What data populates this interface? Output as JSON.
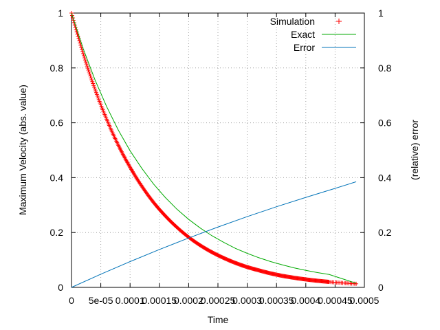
{
  "chart_data": {
    "type": "line",
    "title": "",
    "xlabel": "Time",
    "ylabel": "Maximum Velocity (abs. value)",
    "y2label": "(relative) error",
    "xlim": [
      0,
      0.0005
    ],
    "ylim": [
      0,
      1
    ],
    "y2lim": [
      0,
      1
    ],
    "grid": true,
    "legend_position": "top-right",
    "xticks": [
      "0",
      "5e-05",
      "0.0001",
      "0.00015",
      "0.0002",
      "0.00025",
      "0.0003",
      "0.00035",
      "0.0004",
      "0.00045",
      "0.0005"
    ],
    "yticks": [
      "0",
      "0.2",
      "0.4",
      "0.6",
      "0.8",
      "1"
    ],
    "y2ticks": [
      "0",
      "0.2",
      "0.4",
      "0.6",
      "0.8",
      "1"
    ],
    "series": [
      {
        "name": "Simulation",
        "style": "points",
        "marker": "+",
        "color": "#ff0000",
        "x": [
          0,
          2e-05,
          4e-05,
          6e-05,
          8e-05,
          0.0001,
          0.00012,
          0.00014,
          0.00016,
          0.00018,
          0.0002,
          0.00022,
          0.00024,
          0.00026,
          0.00028,
          0.0003,
          0.00032,
          0.00034,
          0.00036,
          0.00038,
          0.0004,
          0.00042,
          0.00044,
          0.000486
        ],
        "y": [
          1.0,
          0.852,
          0.723,
          0.613,
          0.518,
          0.438,
          0.369,
          0.31,
          0.261,
          0.219,
          0.183,
          0.153,
          0.128,
          0.107,
          0.089,
          0.074,
          0.062,
          0.051,
          0.042,
          0.035,
          0.029,
          0.024,
          0.02,
          0.013
        ]
      },
      {
        "name": "Exact",
        "style": "line",
        "color": "#00aa00",
        "x": [
          0,
          2e-05,
          4e-05,
          6e-05,
          8e-05,
          0.0001,
          0.00012,
          0.00014,
          0.00016,
          0.00018,
          0.0002,
          0.00022,
          0.00024,
          0.00026,
          0.00028,
          0.0003,
          0.00032,
          0.00034,
          0.00036,
          0.00038,
          0.0004,
          0.00042,
          0.00044,
          0.000486
        ],
        "y": [
          1.0,
          0.87,
          0.757,
          0.659,
          0.573,
          0.498,
          0.434,
          0.377,
          0.328,
          0.285,
          0.248,
          0.216,
          0.188,
          0.164,
          0.142,
          0.124,
          0.108,
          0.094,
          0.082,
          0.071,
          0.062,
          0.054,
          0.047,
          0.015
        ]
      },
      {
        "name": "Error",
        "style": "line",
        "color": "#0073b8",
        "axis": "y2",
        "x": [
          0,
          5e-05,
          0.0001,
          0.00015,
          0.0002,
          0.00025,
          0.0003,
          0.00035,
          0.0004,
          0.00045,
          0.000486
        ],
        "y": [
          0.0,
          0.048,
          0.094,
          0.138,
          0.18,
          0.22,
          0.258,
          0.294,
          0.328,
          0.361,
          0.385
        ]
      }
    ]
  }
}
